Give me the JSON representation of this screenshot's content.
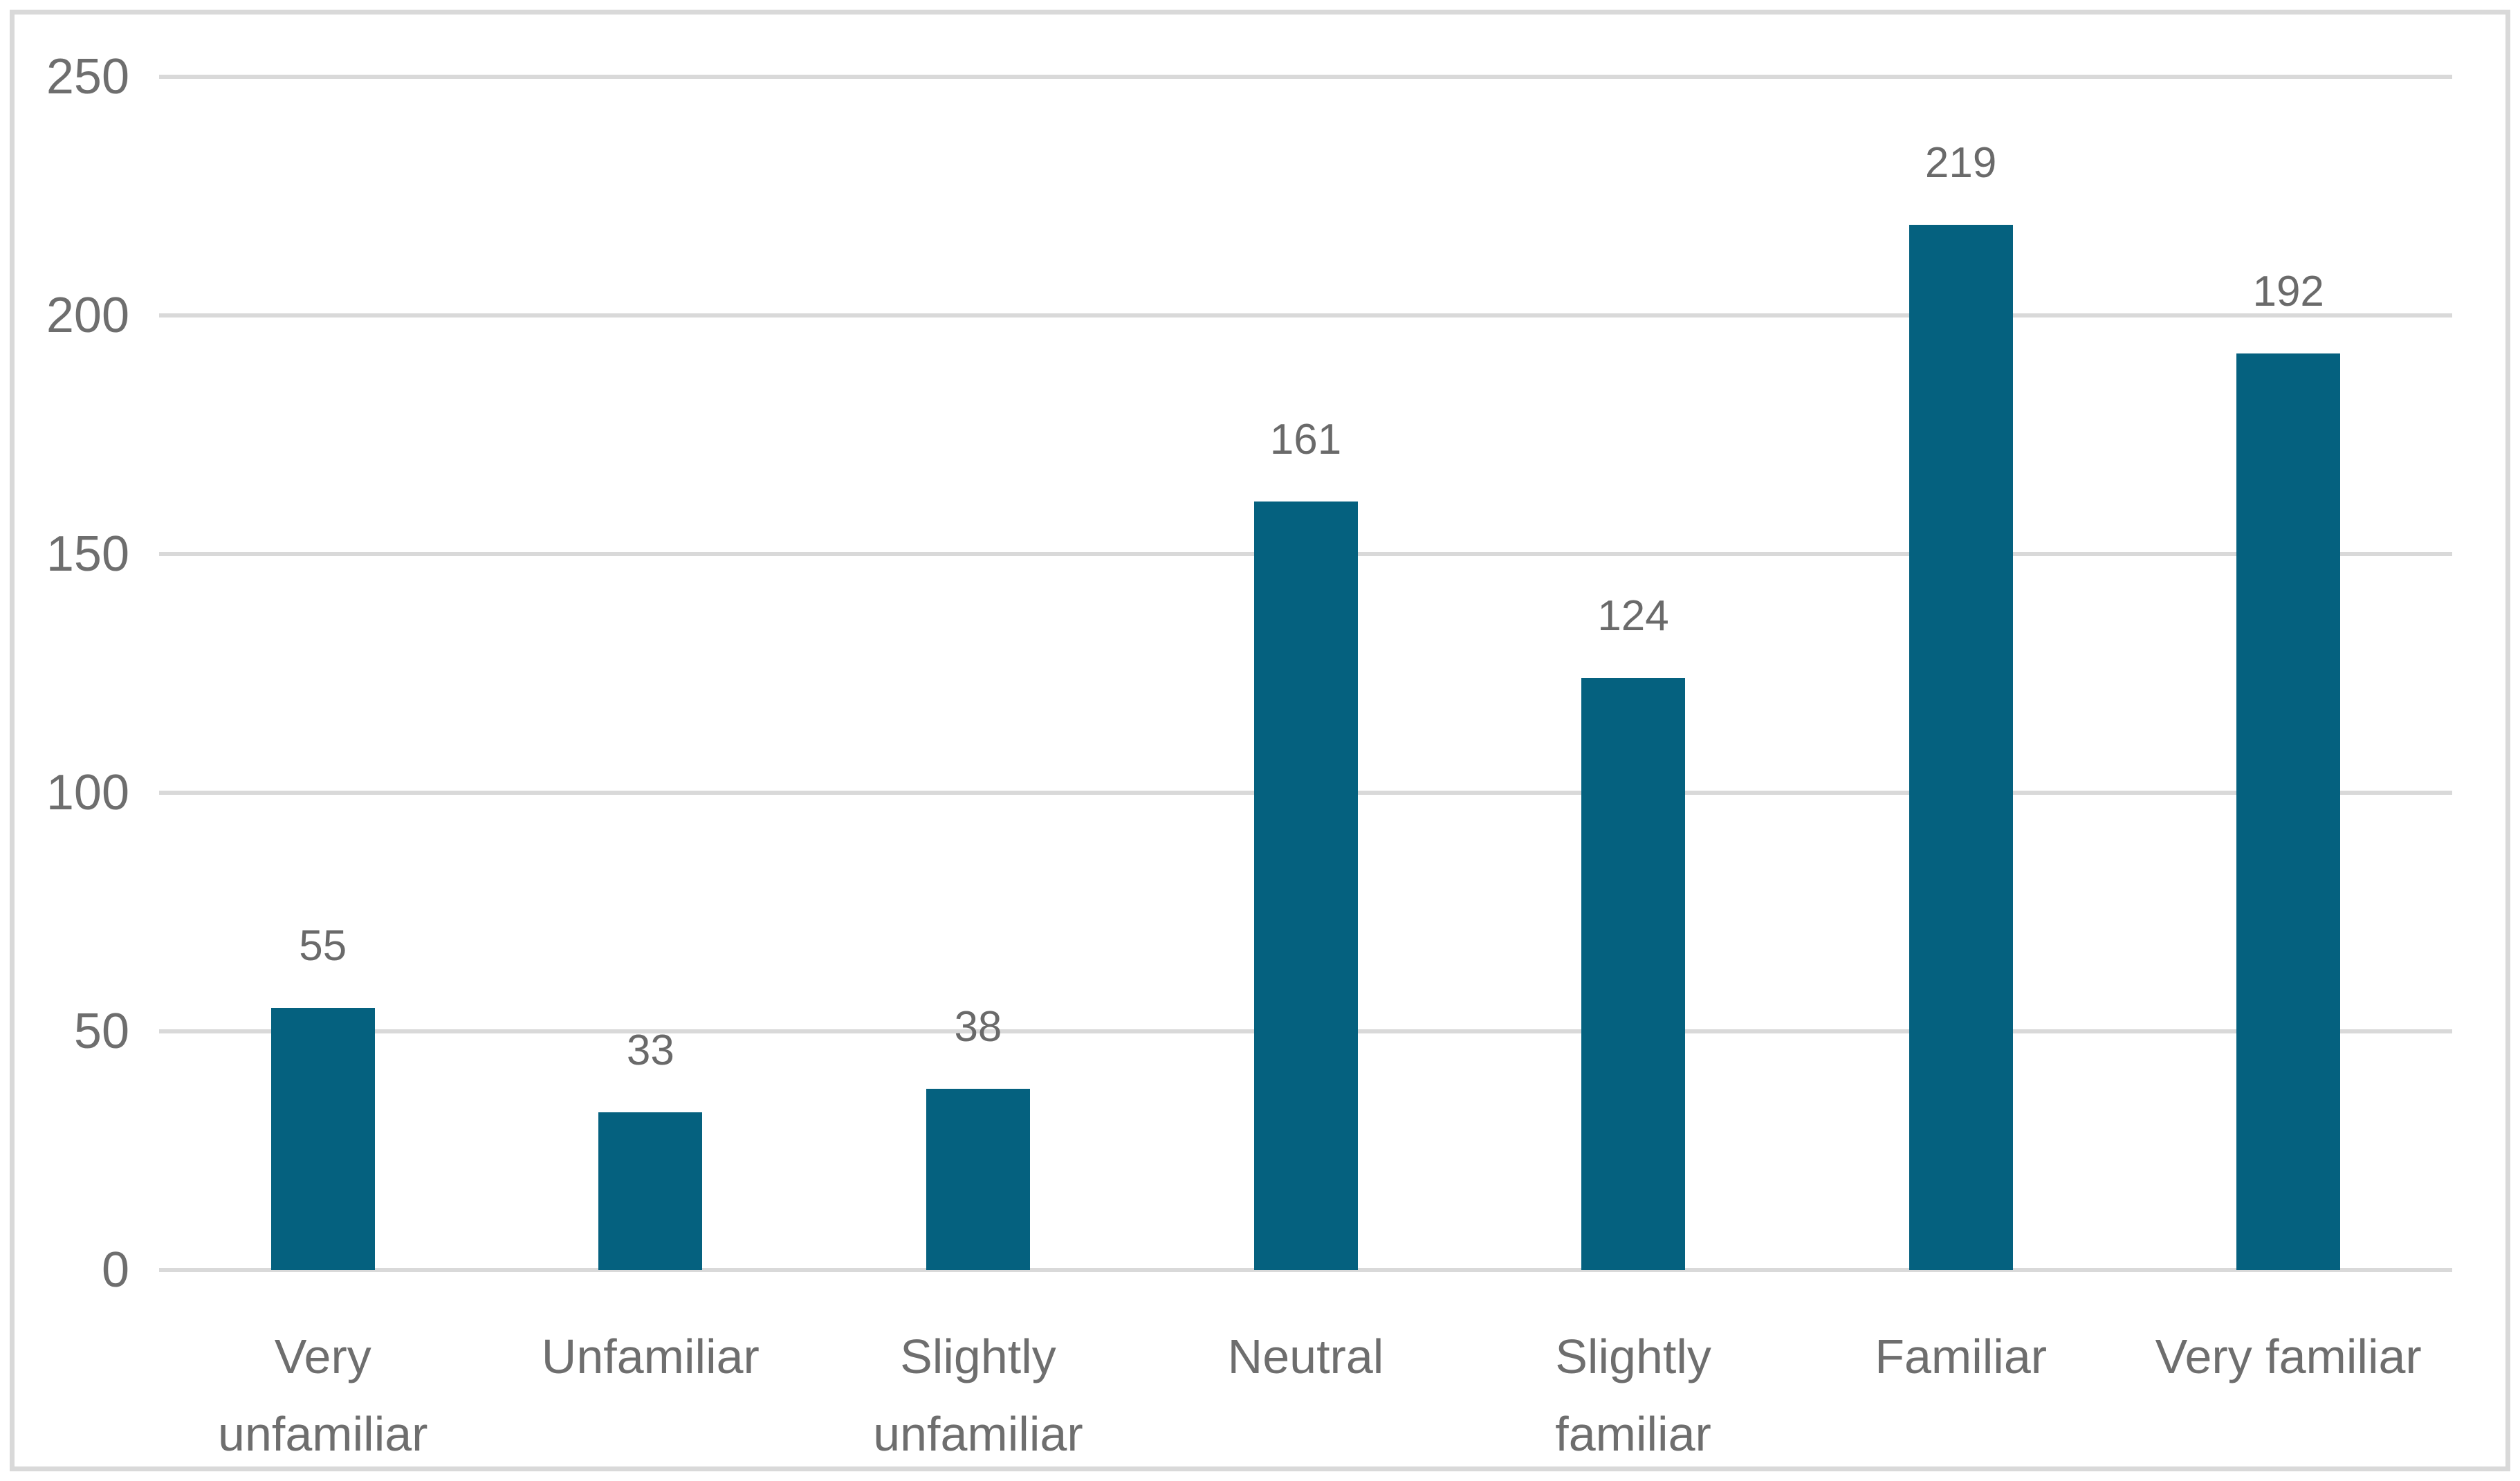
{
  "chart_data": {
    "type": "bar",
    "title": "",
    "xlabel": "",
    "ylabel": "",
    "categories": [
      "Very unfamiliar",
      "Unfamiliar",
      "Slightly unfamiliar",
      "Neutral",
      "Slightly familiar",
      "Familiar",
      "Very familiar"
    ],
    "values": [
      55,
      33,
      38,
      161,
      124,
      219,
      192
    ],
    "data_labels": [
      "55",
      "33",
      "38",
      "161",
      "124",
      "219",
      "192"
    ],
    "ylim": [
      0,
      250
    ],
    "yticks": [
      "0",
      "50",
      "100",
      "150",
      "200",
      "250"
    ],
    "grid": true,
    "legend": false,
    "colors": {
      "bar": "#05617F",
      "gridline": "#D9D9D9",
      "frame_border": "#D9D9D9",
      "tick_text": "#6E6E6E",
      "value_text": "#6A6A6A",
      "category_text": "#6E6E6E",
      "background": "#FFFFFF"
    }
  }
}
